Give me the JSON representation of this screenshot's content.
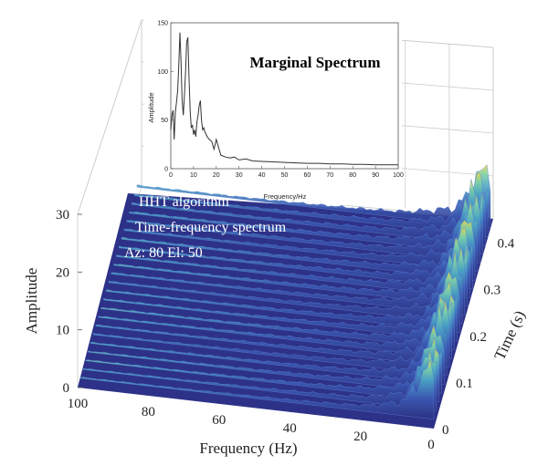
{
  "chart_data": [
    {
      "type": "area",
      "subtype": "3d-waterfall-surface",
      "title": "",
      "xlabel": "Frequency (Hz)",
      "ylabel": "Time (s)",
      "zlabel": "Amplitude",
      "x_ticks": [
        "100",
        "80",
        "60",
        "40",
        "20",
        "0"
      ],
      "y_ticks": [
        "0",
        "0.1",
        "0.2",
        "0.3",
        "0.4"
      ],
      "z_ticks": [
        "0",
        "10",
        "20",
        "30"
      ],
      "xlim": [
        100,
        0
      ],
      "ylim": [
        0,
        0.45
      ],
      "zlim": [
        0,
        30
      ],
      "view": {
        "azimuth": 80,
        "elevation": 50
      },
      "colormap": [
        "#2c3283",
        "#3b59b3",
        "#4aa3c5",
        "#7fd1a6",
        "#e8d84a"
      ],
      "annotations": [
        "HHT algorithm",
        "Time-frequency spectrum",
        "Az: 80 El: 50"
      ],
      "series": [
        {
          "time": 0.0,
          "frequency": [
            0,
            2,
            4,
            6,
            8,
            10,
            14,
            18,
            25,
            35,
            50,
            70,
            100
          ],
          "amplitude": [
            22,
            28,
            20,
            14,
            9,
            7,
            5,
            3.5,
            2.5,
            1.8,
            1.2,
            0.8,
            0.6
          ]
        },
        {
          "time": 0.1,
          "frequency": [
            0,
            2,
            4,
            6,
            8,
            10,
            14,
            18,
            25,
            35,
            50,
            70,
            100
          ],
          "amplitude": [
            24,
            29,
            22,
            15,
            10,
            7.5,
            5.5,
            4,
            2.8,
            2,
            1.4,
            1,
            0.7
          ]
        },
        {
          "time": 0.2,
          "frequency": [
            0,
            2,
            4,
            6,
            8,
            10,
            14,
            18,
            25,
            35,
            50,
            70,
            100
          ],
          "amplitude": [
            26,
            30,
            24,
            16,
            11,
            8,
            6,
            4.5,
            3,
            2.2,
            1.5,
            1,
            0.8
          ]
        },
        {
          "time": 0.3,
          "frequency": [
            0,
            2,
            4,
            6,
            8,
            10,
            14,
            18,
            25,
            35,
            50,
            70,
            100
          ],
          "amplitude": [
            25,
            30,
            26,
            17,
            12,
            8.5,
            6.5,
            5,
            3.2,
            2.4,
            1.6,
            1.1,
            0.9
          ]
        },
        {
          "time": 0.4,
          "frequency": [
            0,
            2,
            4,
            6,
            8,
            10,
            14,
            18,
            25,
            35,
            50,
            70,
            100
          ],
          "amplitude": [
            27,
            30,
            27,
            18,
            13,
            9,
            7,
            5.5,
            3.5,
            2.6,
            1.8,
            1.2,
            1
          ]
        }
      ],
      "grid": true
    },
    {
      "type": "line",
      "title": "Marginal Spectrum",
      "xlabel": "Frequency/Hz",
      "ylabel": "Amplitude",
      "xlim": [
        0,
        100
      ],
      "ylim": [
        0,
        150
      ],
      "x_ticks": [
        "0",
        "10",
        "20",
        "30",
        "40",
        "50",
        "60",
        "70",
        "80",
        "90",
        "100"
      ],
      "y_ticks": [
        "0",
        "50",
        "100",
        "150"
      ],
      "grid": false,
      "series": [
        {
          "x": [
            0,
            0.5,
            1,
            1.5,
            2,
            2.5,
            3,
            3.5,
            4,
            4.5,
            5,
            5.5,
            6,
            6.5,
            7,
            7.5,
            8,
            8.5,
            9,
            9.5,
            10,
            10.5,
            11,
            11.5,
            12,
            12.5,
            13,
            13.5,
            14,
            14.5,
            15,
            16,
            17,
            18,
            19,
            20,
            22,
            24,
            26,
            28,
            30,
            33,
            36,
            40,
            45,
            50,
            55,
            60,
            65,
            70,
            75,
            80,
            85,
            90,
            95,
            100
          ],
          "y": [
            40,
            55,
            60,
            30,
            58,
            68,
            80,
            105,
            140,
            110,
            70,
            55,
            75,
            100,
            130,
            135,
            95,
            60,
            42,
            45,
            35,
            40,
            33,
            48,
            55,
            65,
            70,
            50,
            40,
            42,
            38,
            33,
            30,
            28,
            20,
            30,
            14,
            12,
            11,
            12,
            9,
            10,
            8,
            7.5,
            7,
            6.5,
            6,
            5.5,
            5.5,
            5,
            5,
            4.5,
            4.5,
            4,
            4,
            4
          ]
        }
      ]
    }
  ]
}
